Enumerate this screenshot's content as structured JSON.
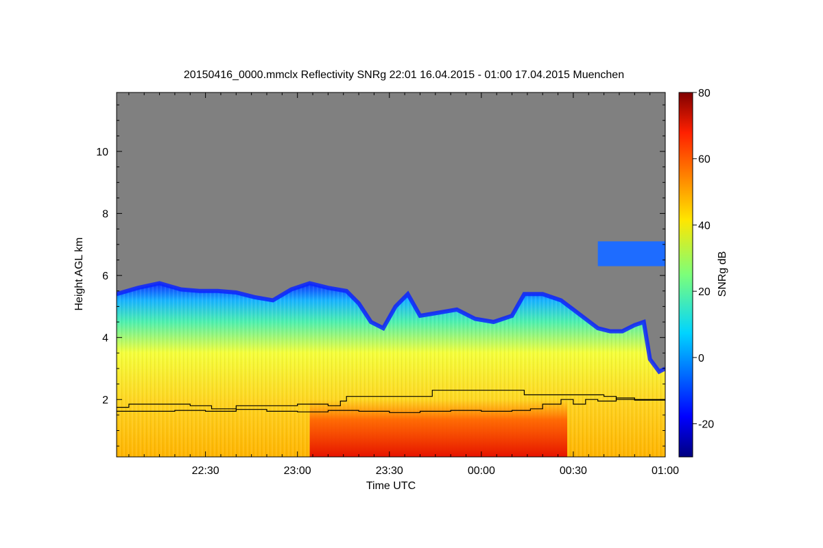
{
  "chart_data": {
    "type": "heatmap",
    "title": "20150416_0000.mmclx Reflectivity SNRg   22:01 16.04.2015 - 01:00 17.04.2015 Muenchen",
    "xlabel": "Time UTC",
    "ylabel": "Height AGL km",
    "colorbar_label": "SNRg dB",
    "x_range_minutes": [
      -119,
      60
    ],
    "x_ticks": [
      {
        "minute": -90,
        "label": "22:30"
      },
      {
        "minute": -60,
        "label": "23:00"
      },
      {
        "minute": -30,
        "label": "23:30"
      },
      {
        "minute": 0,
        "label": "00:00"
      },
      {
        "minute": 30,
        "label": "00:30"
      },
      {
        "minute": 60,
        "label": "01:00"
      }
    ],
    "y_range": [
      0.15,
      11.9
    ],
    "y_ticks": [
      2,
      4,
      6,
      8,
      10
    ],
    "colorbar_range": [
      -30,
      80
    ],
    "colorbar_ticks": [
      -20,
      0,
      20,
      40,
      60,
      80
    ],
    "background_color": "#808080",
    "cloud_top_km": [
      [
        -119,
        5.4
      ],
      [
        -112,
        5.6
      ],
      [
        -105,
        5.75
      ],
      [
        -98,
        5.55
      ],
      [
        -92,
        5.5
      ],
      [
        -86,
        5.5
      ],
      [
        -80,
        5.45
      ],
      [
        -74,
        5.3
      ],
      [
        -68,
        5.2
      ],
      [
        -62,
        5.55
      ],
      [
        -56,
        5.75
      ],
      [
        -50,
        5.6
      ],
      [
        -44,
        5.5
      ],
      [
        -40,
        5.1
      ],
      [
        -36,
        4.5
      ],
      [
        -32,
        4.3
      ],
      [
        -28,
        5.0
      ],
      [
        -24,
        5.4
      ],
      [
        -20,
        4.7
      ],
      [
        -14,
        4.8
      ],
      [
        -8,
        4.9
      ],
      [
        -2,
        4.6
      ],
      [
        4,
        4.5
      ],
      [
        10,
        4.7
      ],
      [
        14,
        5.4
      ],
      [
        20,
        5.4
      ],
      [
        26,
        5.2
      ],
      [
        30,
        4.9
      ],
      [
        34,
        4.6
      ],
      [
        38,
        4.3
      ],
      [
        42,
        4.2
      ],
      [
        46,
        4.2
      ],
      [
        50,
        4.4
      ],
      [
        53,
        4.5
      ],
      [
        55,
        3.3
      ],
      [
        58,
        2.9
      ],
      [
        60,
        3.0
      ]
    ],
    "upper_cloud_layer": {
      "minute_start": 38,
      "minute_end": 60,
      "base_km": 6.3,
      "top_km": 7.1
    },
    "lines": [
      {
        "points": [
          [
            -119,
            1.75
          ],
          [
            -115,
            1.85
          ],
          [
            -95,
            1.8
          ],
          [
            -88,
            1.7
          ],
          [
            -80,
            1.8
          ],
          [
            -60,
            1.85
          ],
          [
            -50,
            1.8
          ],
          [
            -46,
            1.95
          ],
          [
            -44,
            2.1
          ],
          [
            -18,
            2.1
          ],
          [
            -16,
            2.3
          ],
          [
            12,
            2.3
          ],
          [
            14,
            2.15
          ],
          [
            40,
            2.1
          ],
          [
            44,
            2.0
          ],
          [
            60,
            2.0
          ]
        ]
      },
      {
        "points": [
          [
            -119,
            1.62
          ],
          [
            -100,
            1.65
          ],
          [
            -90,
            1.62
          ],
          [
            -80,
            1.68
          ],
          [
            -70,
            1.62
          ],
          [
            -60,
            1.6
          ],
          [
            -50,
            1.65
          ],
          [
            -40,
            1.62
          ],
          [
            -30,
            1.58
          ],
          [
            -20,
            1.62
          ],
          [
            -10,
            1.65
          ],
          [
            0,
            1.62
          ],
          [
            10,
            1.65
          ],
          [
            16,
            1.7
          ],
          [
            20,
            1.85
          ],
          [
            26,
            2.0
          ],
          [
            30,
            1.85
          ],
          [
            34,
            2.0
          ],
          [
            38,
            1.95
          ],
          [
            44,
            2.05
          ],
          [
            50,
            1.98
          ],
          [
            60,
            1.95
          ]
        ]
      }
    ]
  }
}
